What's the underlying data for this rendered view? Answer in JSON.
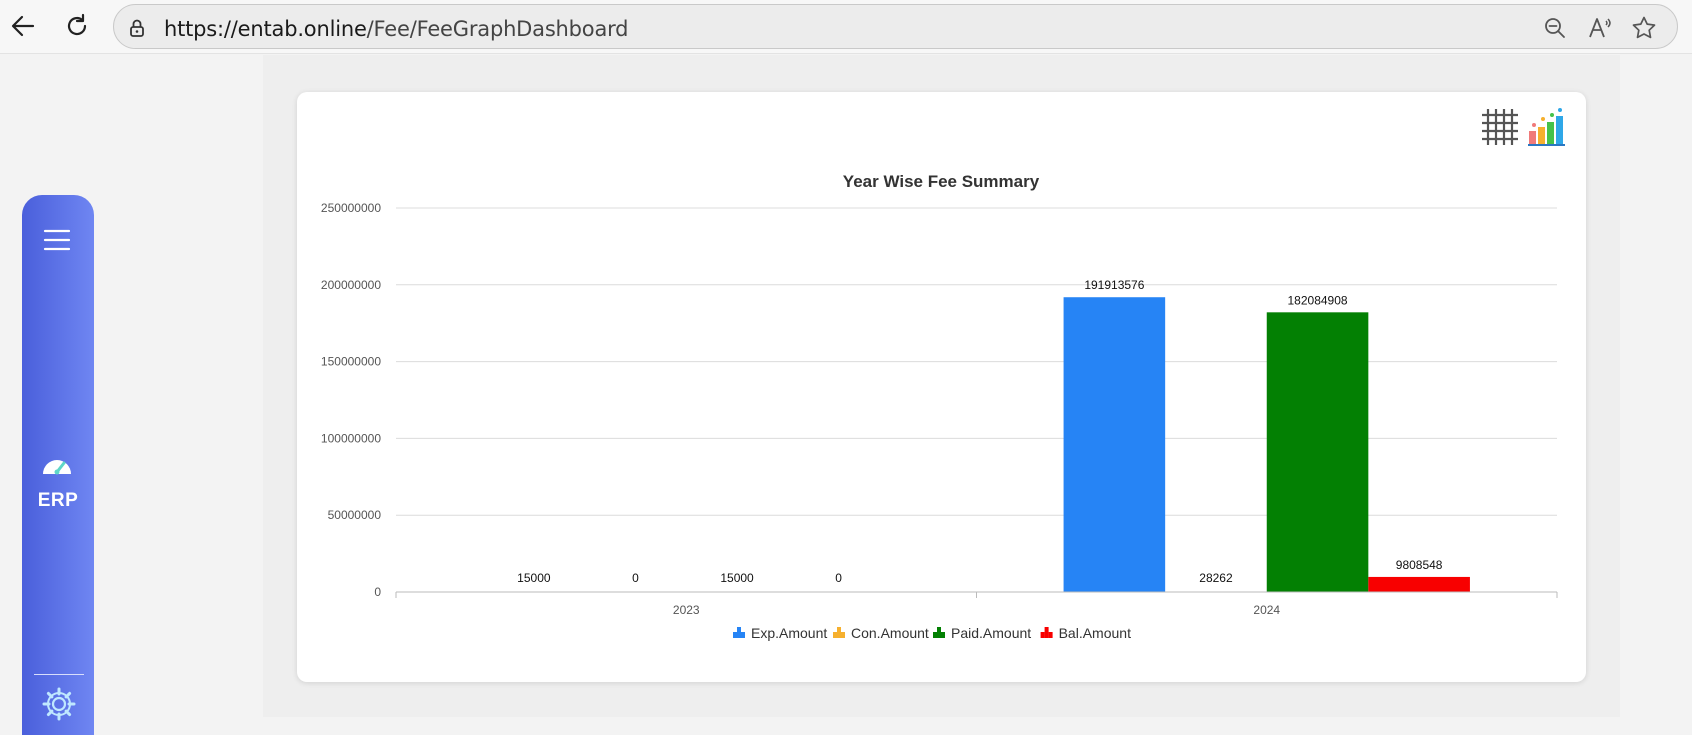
{
  "browser": {
    "url_domain": "https://entab.online",
    "url_path": "/Fee/FeeGraphDashboard"
  },
  "sidebar": {
    "erp_label": "ERP"
  },
  "colors": {
    "exp": "#2684f5",
    "con": "#f6b02e",
    "paid": "#038003",
    "bal": "#f80000",
    "rail_start": "#4a5fdb",
    "rail_end": "#6f86f2"
  },
  "chart_data": {
    "type": "bar",
    "title": "Year Wise Fee Summary",
    "categories": [
      "2023",
      "2024"
    ],
    "series": [
      {
        "name": "Exp.Amount",
        "values": [
          15000,
          191913576
        ]
      },
      {
        "name": "Con.Amount",
        "values": [
          0,
          28262
        ]
      },
      {
        "name": "Paid.Amount",
        "values": [
          15000,
          182084908
        ]
      },
      {
        "name": "Bal.Amount",
        "values": [
          0,
          9808548
        ]
      }
    ],
    "ylim": [
      0,
      250000000
    ],
    "yticks": [
      "0",
      "50000000",
      "100000000",
      "150000000",
      "200000000",
      "250000000"
    ],
    "grid": true,
    "legend": "bottom"
  }
}
